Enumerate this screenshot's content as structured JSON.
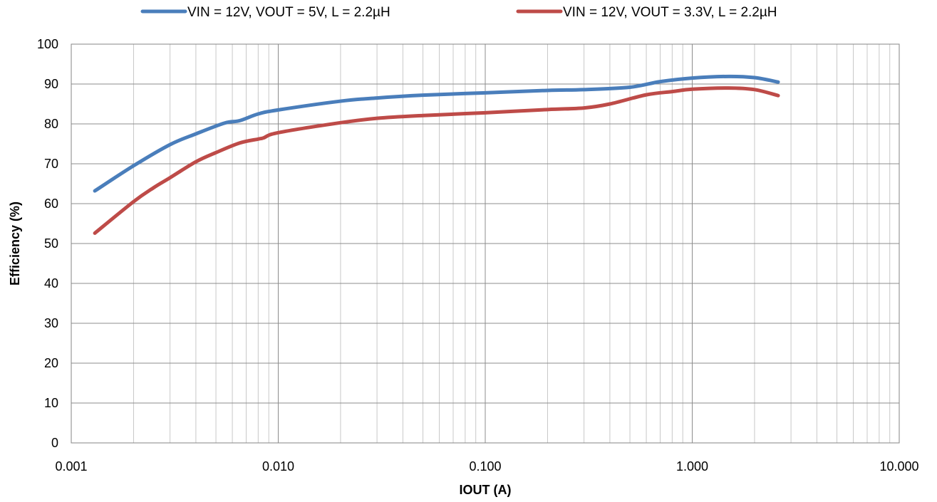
{
  "chart_data": {
    "type": "line",
    "xlabel": "IOUT (A)",
    "ylabel": "Efficiency (%)",
    "x_scale": "log",
    "xlim": [
      0.001,
      10
    ],
    "ylim": [
      0,
      100
    ],
    "grid": true,
    "legend_position": "top",
    "x_tick_labels": [
      "0.001",
      "0.010",
      "0.100",
      "1.000",
      "10.000"
    ],
    "y_tick_labels": [
      "0",
      "10",
      "20",
      "30",
      "40",
      "50",
      "60",
      "70",
      "80",
      "90",
      "100"
    ],
    "series": [
      {
        "name": "VIN  = 12V, VOUT = 5V, L = 2.2µH",
        "color": "#4a7ebb",
        "x": [
          0.0013,
          0.002,
          0.003,
          0.004,
          0.0055,
          0.0065,
          0.008,
          0.01,
          0.02,
          0.03,
          0.05,
          0.1,
          0.2,
          0.3,
          0.5,
          0.7,
          1.0,
          1.5,
          2.0,
          2.6
        ],
        "y": [
          63.2,
          69.5,
          74.8,
          77.5,
          80.2,
          80.8,
          82.5,
          83.5,
          85.7,
          86.5,
          87.2,
          87.8,
          88.4,
          88.6,
          89.2,
          90.6,
          91.5,
          91.9,
          91.6,
          90.5
        ]
      },
      {
        "name": "VIN  = 12V, VOUT = 3.3V, L = 2.2µH",
        "color": "#be4b48",
        "x": [
          0.0013,
          0.002,
          0.0025,
          0.003,
          0.004,
          0.005,
          0.0065,
          0.008,
          0.0085,
          0.01,
          0.02,
          0.03,
          0.05,
          0.1,
          0.2,
          0.3,
          0.4,
          0.6,
          0.8,
          1.0,
          1.5,
          2.0,
          2.6
        ],
        "y": [
          52.6,
          60.5,
          64.0,
          66.5,
          70.5,
          72.8,
          75.2,
          76.2,
          76.5,
          77.8,
          80.3,
          81.4,
          82.1,
          82.8,
          83.6,
          84.0,
          85.0,
          87.3,
          88.1,
          88.7,
          89.0,
          88.6,
          87.1
        ]
      }
    ]
  }
}
